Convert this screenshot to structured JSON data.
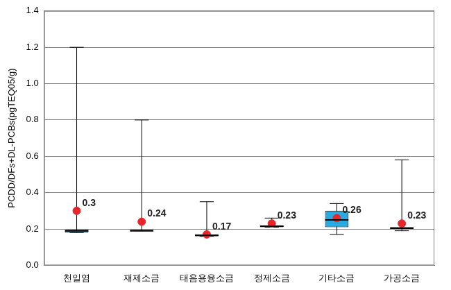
{
  "chart_data": {
    "type": "boxplot",
    "y_label": "PCDD/DFs+DL-PCBs(pgTEQ05/g)",
    "categories": [
      "천일염",
      "재제소금",
      "태음용융소금",
      "정제소금",
      "기타소금",
      "가공소금"
    ],
    "series": [
      {
        "type": "box",
        "color": "#29abe2",
        "min": [
          0.18,
          0.19,
          0.16,
          0.21,
          0.17,
          0.19
        ],
        "q1": [
          0.18,
          0.19,
          0.16,
          0.21,
          0.21,
          0.2
        ],
        "median": [
          0.19,
          0.19,
          0.165,
          0.215,
          0.25,
          0.205
        ],
        "q3": [
          0.195,
          0.195,
          0.17,
          0.22,
          0.3,
          0.21
        ],
        "max": [
          1.2,
          0.8,
          0.35,
          0.26,
          0.34,
          0.58
        ]
      },
      {
        "type": "scatter",
        "color": "#e8262a",
        "marker": "circle",
        "data_labels": true,
        "values": [
          0.3,
          0.24,
          0.17,
          0.23,
          0.26,
          0.23
        ]
      }
    ],
    "ylim": [
      0,
      1.4
    ],
    "yticks": [
      {
        "value": 0,
        "label": "0.0"
      },
      {
        "value": 0.2,
        "label": "0.2"
      },
      {
        "value": 0.4,
        "label": "0.4"
      },
      {
        "value": 0.6,
        "label": "0.6"
      },
      {
        "value": 0.8,
        "label": "0.8"
      },
      {
        "value": 1.0,
        "label": "1.0"
      },
      {
        "value": 1.2,
        "label": "1.2"
      },
      {
        "value": 1.4,
        "label": "1.4"
      }
    ],
    "grid": true
  }
}
